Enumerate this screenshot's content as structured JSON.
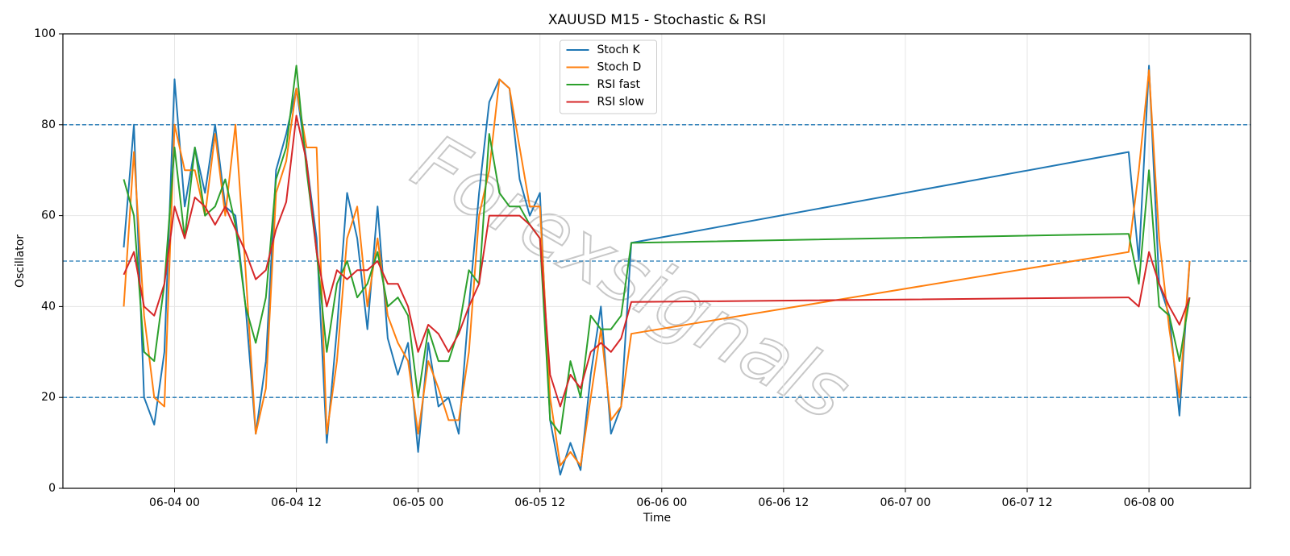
{
  "chart_data": {
    "type": "line",
    "title": "XAUUSD M15 - Stochastic & RSI",
    "xlabel": "Time",
    "ylabel": "Oscillator",
    "watermark": "Forexsignals",
    "x": [
      "06-03 19",
      "06-03 20",
      "06-03 21",
      "06-03 22",
      "06-03 23",
      "06-04 00",
      "06-04 01",
      "06-04 02",
      "06-04 03",
      "06-04 04",
      "06-04 05",
      "06-04 06",
      "06-04 07",
      "06-04 08",
      "06-04 09",
      "06-04 10",
      "06-04 11",
      "06-04 12",
      "06-04 13",
      "06-04 14",
      "06-04 15",
      "06-04 16",
      "06-04 17",
      "06-04 18",
      "06-04 19",
      "06-04 20",
      "06-04 21",
      "06-04 22",
      "06-04 23",
      "06-05 00",
      "06-05 01",
      "06-05 02",
      "06-05 03",
      "06-05 04",
      "06-05 05",
      "06-05 06",
      "06-05 07",
      "06-05 08",
      "06-05 09",
      "06-05 10",
      "06-05 11",
      "06-05 12",
      "06-05 13",
      "06-05 14",
      "06-05 15",
      "06-05 16",
      "06-05 17",
      "06-05 18",
      "06-05 19",
      "06-05 20",
      "06-05 21",
      "06-07 22",
      "06-07 23",
      "06-08 00",
      "06-08 01",
      "06-08 02",
      "06-08 03",
      "06-08 04"
    ],
    "series": [
      {
        "name": "Stoch K",
        "color": "#1f77b4",
        "values": [
          53,
          80,
          20,
          14,
          30,
          90,
          62,
          75,
          65,
          80,
          62,
          60,
          40,
          12,
          28,
          70,
          78,
          88,
          72,
          55,
          10,
          35,
          65,
          55,
          35,
          62,
          33,
          25,
          32,
          8,
          32,
          18,
          20,
          12,
          40,
          65,
          85,
          90,
          88,
          68,
          60,
          65,
          15,
          3,
          10,
          4,
          25,
          40,
          12,
          18,
          54,
          74,
          50,
          93,
          45,
          38,
          16,
          50
        ]
      },
      {
        "name": "Stoch D",
        "color": "#ff7f0e",
        "values": [
          40,
          74,
          38,
          20,
          18,
          80,
          70,
          70,
          60,
          78,
          60,
          80,
          48,
          12,
          22,
          65,
          72,
          88,
          75,
          75,
          12,
          28,
          55,
          62,
          40,
          55,
          38,
          32,
          28,
          12,
          28,
          22,
          15,
          15,
          30,
          60,
          70,
          90,
          88,
          75,
          62,
          62,
          20,
          5,
          8,
          5,
          20,
          35,
          15,
          18,
          34,
          52,
          70,
          92,
          55,
          35,
          20,
          50
        ]
      },
      {
        "name": "RSI fast",
        "color": "#2ca02c",
        "values": [
          68,
          60,
          30,
          28,
          45,
          75,
          55,
          75,
          60,
          62,
          68,
          58,
          40,
          32,
          42,
          68,
          75,
          93,
          70,
          52,
          30,
          45,
          50,
          42,
          45,
          52,
          40,
          42,
          38,
          20,
          35,
          28,
          28,
          35,
          48,
          45,
          78,
          65,
          62,
          62,
          58,
          55,
          15,
          12,
          28,
          20,
          38,
          35,
          35,
          38,
          54,
          56,
          45,
          70,
          40,
          38,
          28,
          42
        ]
      },
      {
        "name": "RSI slow",
        "color": "#d62728",
        "values": [
          47,
          52,
          40,
          38,
          45,
          62,
          55,
          64,
          62,
          58,
          62,
          57,
          52,
          46,
          48,
          57,
          63,
          82,
          72,
          52,
          40,
          48,
          46,
          48,
          48,
          50,
          45,
          45,
          40,
          30,
          36,
          34,
          30,
          34,
          40,
          45,
          60,
          60,
          60,
          60,
          58,
          55,
          25,
          18,
          25,
          22,
          30,
          32,
          30,
          33,
          41,
          42,
          40,
          52,
          45,
          40,
          36,
          42
        ]
      }
    ],
    "xlim": [
      "06-03 13",
      "06-08 10"
    ],
    "xticks": [
      "06-04 00",
      "06-04 12",
      "06-05 00",
      "06-05 12",
      "06-06 00",
      "06-06 12",
      "06-07 00",
      "06-07 12",
      "06-08 00"
    ],
    "ylim": [
      0,
      100
    ],
    "yticks": [
      0,
      20,
      40,
      60,
      80,
      100
    ],
    "levels": [
      20,
      50,
      80
    ],
    "level_color": "#1f77b4",
    "grid": true,
    "legend": "upper center"
  }
}
